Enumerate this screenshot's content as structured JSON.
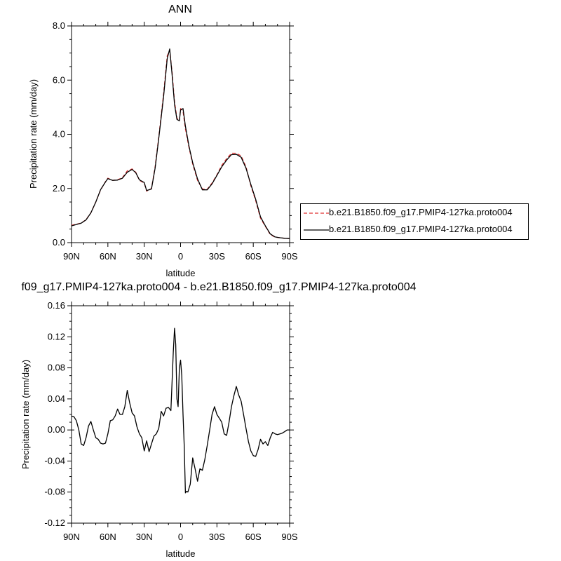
{
  "chart_data": [
    {
      "type": "line",
      "title": "ANN",
      "xlabel": "latitude",
      "ylabel": "Precipitation rate (mm/day)",
      "xlim": [
        -90,
        90
      ],
      "ylim": [
        0,
        8
      ],
      "x_ticks": [
        -90,
        -60,
        -30,
        0,
        30,
        60,
        90
      ],
      "x_tick_labels": [
        "90N",
        "60N",
        "30N",
        "0",
        "30S",
        "60S",
        "90S"
      ],
      "y_ticks": [
        0,
        2,
        4,
        6,
        8
      ],
      "y_tick_labels": [
        "0.0",
        "2.0",
        "4.0",
        "6.0",
        "8.0"
      ],
      "legend_position": "right",
      "series": [
        {
          "name": "b.e21.B1850.f09_g17.PMIP4-127ka.proto004",
          "color": "#e03030",
          "dash": "dashed",
          "x": [
            -90,
            -86,
            -82,
            -78,
            -74,
            -70,
            -66,
            -62,
            -60,
            -56,
            -52,
            -48,
            -44,
            -40,
            -37,
            -34,
            -30,
            -28,
            -24,
            -21,
            -18,
            -14,
            -11,
            -9,
            -7,
            -5,
            -3,
            -1,
            0,
            2,
            4,
            7,
            10,
            14,
            18,
            22,
            26,
            30,
            34,
            38,
            42,
            46,
            50,
            54,
            58,
            62,
            66,
            70,
            74,
            78,
            82,
            86,
            90
          ],
          "y": [
            0.64,
            0.68,
            0.72,
            0.85,
            1.1,
            1.5,
            1.95,
            2.25,
            2.38,
            2.3,
            2.32,
            2.4,
            2.65,
            2.72,
            2.6,
            2.3,
            2.2,
            1.9,
            2.0,
            2.8,
            3.9,
            5.5,
            6.9,
            7.1,
            6.3,
            5.2,
            4.6,
            4.5,
            4.95,
            4.85,
            4.2,
            3.5,
            2.9,
            2.3,
            1.98,
            1.97,
            2.2,
            2.5,
            2.85,
            3.1,
            3.3,
            3.3,
            3.2,
            2.8,
            2.1,
            1.55,
            0.9,
            0.6,
            0.3,
            0.2,
            0.18,
            0.16,
            0.15
          ]
        },
        {
          "name": "b.e21.B1850.f09_g17.PMIP4-127ka.proto004",
          "color": "#000000",
          "dash": "solid",
          "x": [
            -90,
            -86,
            -82,
            -78,
            -74,
            -70,
            -66,
            -62,
            -60,
            -56,
            -52,
            -48,
            -44,
            -40,
            -37,
            -34,
            -30,
            -28,
            -24,
            -21,
            -18,
            -14,
            -11,
            -9,
            -7,
            -5,
            -3,
            -1,
            0,
            2,
            4,
            7,
            10,
            14,
            18,
            22,
            26,
            30,
            34,
            38,
            42,
            46,
            50,
            54,
            58,
            62,
            66,
            70,
            74,
            78,
            82,
            86,
            90
          ],
          "y": [
            0.62,
            0.67,
            0.72,
            0.84,
            1.1,
            1.5,
            1.96,
            2.24,
            2.36,
            2.3,
            2.31,
            2.38,
            2.6,
            2.7,
            2.58,
            2.32,
            2.22,
            1.92,
            1.98,
            2.75,
            3.85,
            5.4,
            6.8,
            7.15,
            6.2,
            5.1,
            4.55,
            4.5,
            4.9,
            4.95,
            4.3,
            3.55,
            2.95,
            2.35,
            1.95,
            1.95,
            2.17,
            2.48,
            2.8,
            3.05,
            3.25,
            3.26,
            3.15,
            2.75,
            2.15,
            1.6,
            0.95,
            0.62,
            0.32,
            0.21,
            0.18,
            0.16,
            0.15
          ]
        }
      ]
    },
    {
      "type": "line",
      "title": "f09_g17.PMIP4-127ka.proto004 - b.e21.B1850.f09_g17.PMIP4-127ka.proto004",
      "xlabel": "latitude",
      "ylabel": "Precipitation rate (mm/day)",
      "xlim": [
        -90,
        90
      ],
      "ylim": [
        -0.12,
        0.16
      ],
      "x_ticks": [
        -90,
        -60,
        -30,
        0,
        30,
        60,
        90
      ],
      "x_tick_labels": [
        "90N",
        "60N",
        "30N",
        "0",
        "30S",
        "60S",
        "90S"
      ],
      "y_ticks": [
        -0.12,
        -0.08,
        -0.04,
        0,
        0.04,
        0.08,
        0.12,
        0.16
      ],
      "y_tick_labels": [
        "-0.12",
        "-0.08",
        "-0.04",
        "0.00",
        "0.04",
        "0.08",
        "0.12",
        "0.16"
      ],
      "series": [
        {
          "name": "",
          "color": "#000000",
          "dash": "solid",
          "x": [
            -90,
            -88,
            -86,
            -84,
            -82,
            -80,
            -78,
            -76,
            -74,
            -72,
            -70,
            -68,
            -66,
            -64,
            -62,
            -60,
            -58,
            -56,
            -54,
            -52,
            -50,
            -48,
            -46,
            -44,
            -42,
            -40,
            -38,
            -36,
            -34,
            -32,
            -30,
            -28,
            -26,
            -24,
            -22,
            -20,
            -18,
            -16,
            -14,
            -12,
            -10,
            -8,
            -6,
            -5,
            -4,
            -3,
            -2,
            -1,
            0,
            1,
            2,
            3,
            4,
            5,
            6,
            8,
            10,
            12,
            14,
            16,
            18,
            20,
            22,
            24,
            26,
            28,
            30,
            32,
            34,
            36,
            38,
            40,
            42,
            44,
            46,
            48,
            50,
            52,
            54,
            56,
            58,
            60,
            62,
            64,
            66,
            68,
            70,
            72,
            74,
            76,
            78,
            80,
            82,
            84,
            86,
            88,
            90
          ],
          "y": [
            0.018,
            0.017,
            0.012,
            0.0,
            -0.018,
            -0.02,
            -0.01,
            0.005,
            0.011,
            0.0,
            -0.01,
            -0.012,
            -0.017,
            -0.018,
            -0.017,
            -0.005,
            0.012,
            0.013,
            0.018,
            0.027,
            0.02,
            0.02,
            0.03,
            0.051,
            0.035,
            0.022,
            0.018,
            0.004,
            -0.005,
            -0.01,
            -0.027,
            -0.014,
            -0.028,
            -0.018,
            -0.008,
            -0.005,
            0.002,
            0.024,
            0.018,
            0.028,
            0.029,
            0.025,
            0.1,
            0.131,
            0.11,
            0.04,
            0.03,
            0.08,
            0.09,
            0.07,
            0.02,
            -0.02,
            -0.081,
            -0.079,
            -0.08,
            -0.07,
            -0.036,
            -0.05,
            -0.066,
            -0.05,
            -0.052,
            -0.038,
            -0.02,
            0.0,
            0.02,
            0.03,
            0.02,
            0.015,
            0.01,
            -0.005,
            -0.007,
            0.01,
            0.03,
            0.044,
            0.056,
            0.045,
            0.037,
            0.02,
            0.002,
            -0.015,
            -0.027,
            -0.033,
            -0.034,
            -0.025,
            -0.012,
            -0.018,
            -0.015,
            -0.02,
            -0.01,
            -0.003,
            -0.005,
            -0.006,
            -0.005,
            -0.004,
            -0.002,
            0.0,
            0.0
          ]
        }
      ]
    }
  ]
}
